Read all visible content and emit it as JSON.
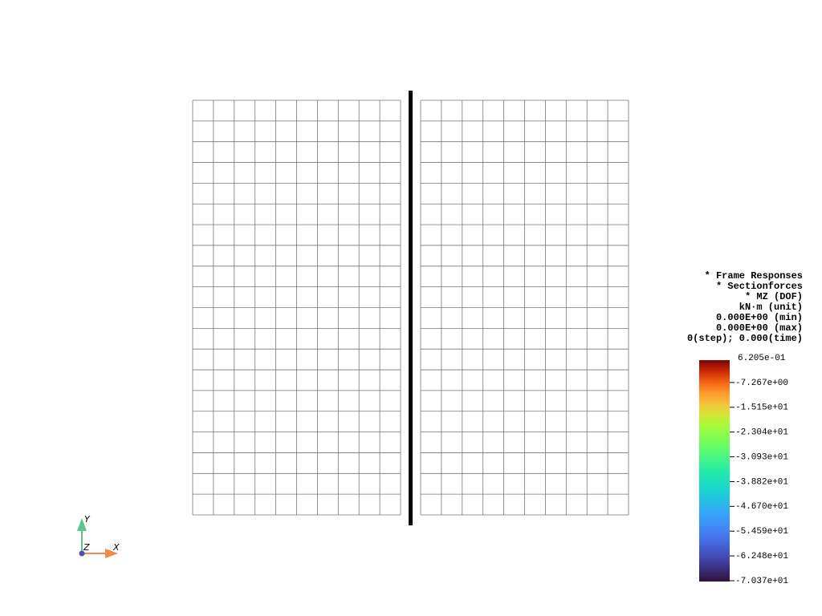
{
  "legend": {
    "lines": [
      "* Frame Responses",
      "* Sectionforces",
      "* MZ (DOF)",
      "kN·m (unit)",
      "0.000E+00 (min)",
      "0.000E+00 (max)",
      "0(step); 0.000(time)"
    ]
  },
  "colorbar": {
    "ticks": [
      "6.205e-01",
      "-7.267e+00",
      "-1.515e+01",
      "-2.304e+01",
      "-3.093e+01",
      "-3.882e+01",
      "-4.670e+01",
      "-5.459e+01",
      "-6.248e+01",
      "-7.037e+01"
    ]
  },
  "axes": {
    "x": "X",
    "y": "Y",
    "z": "Z"
  }
}
